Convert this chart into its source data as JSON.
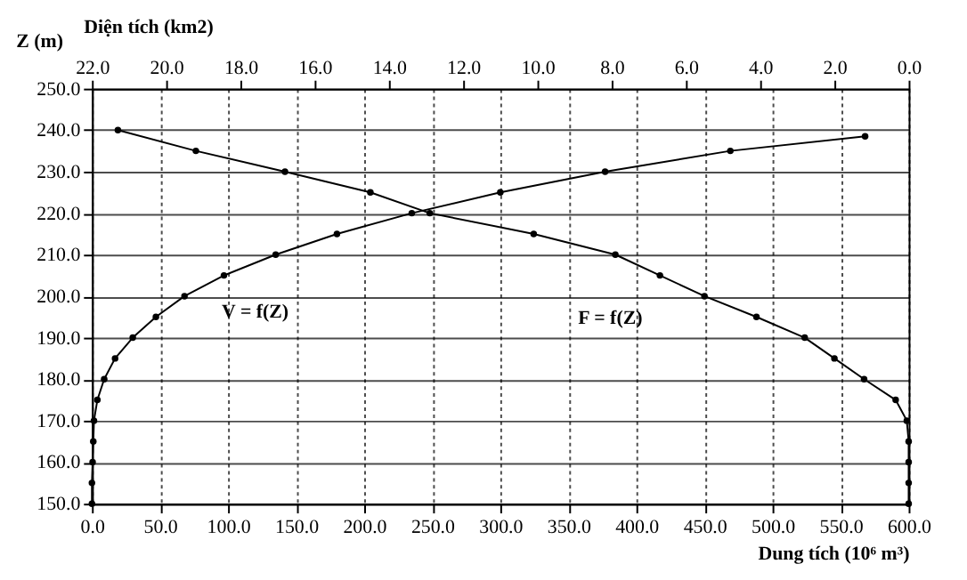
{
  "chart_data": {
    "type": "line",
    "xlabel": "Dung tích (10⁶ m³)",
    "x2label": "Diện tích (km2)",
    "ylabel": "Z (m)",
    "xlim": [
      0,
      600
    ],
    "xticks": [
      {
        "value": 0,
        "label": "0.0"
      },
      {
        "value": 50,
        "label": "50.0"
      },
      {
        "value": 100,
        "label": "100.0"
      },
      {
        "value": 150,
        "label": "150.0"
      },
      {
        "value": 200,
        "label": "200.0"
      },
      {
        "value": 250,
        "label": "250.0"
      },
      {
        "value": 300,
        "label": "300.0"
      },
      {
        "value": 350,
        "label": "350.0"
      },
      {
        "value": 400,
        "label": "400.0"
      },
      {
        "value": 450,
        "label": "450.0"
      },
      {
        "value": 500,
        "label": "500.0"
      },
      {
        "value": 550,
        "label": "550.0"
      },
      {
        "value": 600,
        "label": "600.0"
      }
    ],
    "x2lim": [
      22,
      0
    ],
    "x2ticks": [
      {
        "value": 22,
        "label": "22.0"
      },
      {
        "value": 20,
        "label": "20.0"
      },
      {
        "value": 18,
        "label": "18.0"
      },
      {
        "value": 16,
        "label": "16.0"
      },
      {
        "value": 14,
        "label": "14.0"
      },
      {
        "value": 12,
        "label": "12.0"
      },
      {
        "value": 10,
        "label": "10.0"
      },
      {
        "value": 8,
        "label": "8.0"
      },
      {
        "value": 6,
        "label": "6.0"
      },
      {
        "value": 4,
        "label": "4.0"
      },
      {
        "value": 2,
        "label": "2.0"
      },
      {
        "value": 0,
        "label": "0.0"
      }
    ],
    "ylim": [
      150,
      250
    ],
    "yticks": [
      {
        "value": 150,
        "label": "150.0"
      },
      {
        "value": 160,
        "label": "160.0"
      },
      {
        "value": 170,
        "label": "170.0"
      },
      {
        "value": 180,
        "label": "180.0"
      },
      {
        "value": 190,
        "label": "190.0"
      },
      {
        "value": 200,
        "label": "200.0"
      },
      {
        "value": 210,
        "label": "210.0"
      },
      {
        "value": 220,
        "label": "220.0"
      },
      {
        "value": 230,
        "label": "230.0"
      },
      {
        "value": 240,
        "label": "240.0"
      },
      {
        "value": 250,
        "label": "250.0"
      }
    ],
    "series": [
      {
        "color": "#000000",
        "x": [
          0,
          0,
          0.5,
          1,
          1.5,
          4,
          9,
          17,
          30,
          47,
          68,
          97,
          135,
          180,
          235,
          300,
          377,
          469,
          568
        ],
        "values": [
          150,
          155,
          160,
          165,
          170,
          175,
          180,
          185,
          190,
          195,
          200,
          205,
          210,
          215,
          220,
          225,
          230,
          235,
          238.5
        ]
      },
      {
        "color": "#000000",
        "axis": "x2",
        "x": [
          0,
          0,
          0,
          0,
          0.05,
          0.35,
          1.2,
          2.0,
          2.8,
          4.1,
          5.5,
          6.7,
          7.9,
          10.1,
          12.9,
          14.5,
          16.8,
          19.2,
          21.3
        ],
        "values": [
          150,
          155,
          160,
          165,
          170,
          175,
          180,
          185,
          190,
          195,
          200,
          205,
          210,
          215,
          220,
          225,
          230,
          235,
          240
        ]
      }
    ],
    "annotations": [
      {
        "text": "V = f(Z)",
        "x": 85,
        "y": 202
      },
      {
        "text": "F = f(Z)",
        "x": 420,
        "y": 204
      }
    ],
    "grid": true,
    "marker": "circle",
    "line_style": "solid"
  }
}
